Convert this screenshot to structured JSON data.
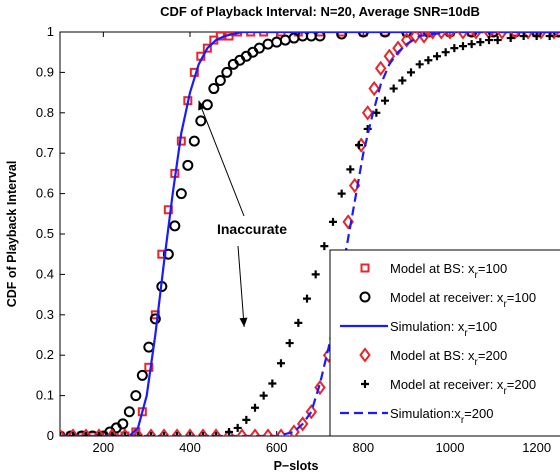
{
  "chart_data": {
    "type": "line",
    "title": "CDF of Playback Interval: N=20, Average SNR=10dB",
    "xlabel": "P−slots",
    "ylabel": "CDF of Playback Interval",
    "xlim": [
      100,
      1300
    ],
    "ylim": [
      0,
      1
    ],
    "xticks": [
      200,
      400,
      600,
      800,
      1000,
      1200
    ],
    "xtick_labels": [
      "200",
      "400",
      "600",
      "800",
      "1000",
      "1200"
    ],
    "yticks": [
      0,
      0.1,
      0.2,
      0.3,
      0.4,
      0.5,
      0.6,
      0.7,
      0.8,
      0.9,
      1
    ],
    "ytick_labels": [
      "0",
      "0.1",
      "0.2",
      "0.3",
      "0.4",
      "0.5",
      "0.6",
      "0.7",
      "0.8",
      "0.9",
      "1"
    ],
    "grid": false,
    "legend_position": "lower-right",
    "annotation": {
      "text": "Inaccurate",
      "arrow_targets": [
        {
          "x": 420,
          "y": 0.83
        },
        {
          "x": 525,
          "y": 0.27
        }
      ]
    },
    "series": [
      {
        "name": "Model at BS: x_r=100",
        "legend_main": "Model at BS: x",
        "legend_sub": "r",
        "legend_tail": "=100",
        "marker": "square",
        "color": "#e8262a",
        "line": "none",
        "x": [
          100,
          125,
          150,
          175,
          200,
          225,
          250,
          275,
          290,
          305,
          320,
          335,
          350,
          365,
          380,
          395,
          410,
          425,
          440,
          455,
          470,
          490,
          510,
          540,
          570,
          610,
          650,
          700,
          750,
          800,
          850,
          900,
          950,
          1000,
          1050,
          1100,
          1150,
          1200,
          1250,
          1300
        ],
        "y": [
          0,
          0,
          0,
          0,
          0,
          0,
          0,
          0.01,
          0.06,
          0.17,
          0.3,
          0.45,
          0.56,
          0.65,
          0.73,
          0.83,
          0.9,
          0.94,
          0.96,
          0.98,
          0.99,
          0.99,
          1,
          1,
          1,
          1,
          1,
          1,
          1,
          1,
          1,
          1,
          1,
          1,
          1,
          1,
          1,
          1,
          1,
          1
        ]
      },
      {
        "name": "Model at receiver: x_r=100",
        "legend_main": "Model at receiver: x",
        "legend_sub": "r",
        "legend_tail": "=100",
        "marker": "circle",
        "color": "#000000",
        "line": "none",
        "x": [
          100,
          125,
          150,
          175,
          200,
          215,
          230,
          245,
          260,
          275,
          290,
          305,
          320,
          335,
          350,
          365,
          380,
          395,
          410,
          425,
          440,
          455,
          470,
          485,
          500,
          515,
          530,
          545,
          560,
          580,
          600,
          620,
          640,
          660,
          680,
          700,
          750,
          800,
          850,
          900,
          950,
          1000,
          1050,
          1100,
          1150,
          1200,
          1250,
          1300
        ],
        "y": [
          0,
          0,
          0,
          0,
          0,
          0.01,
          0.02,
          0.03,
          0.06,
          0.1,
          0.15,
          0.22,
          0.29,
          0.37,
          0.45,
          0.52,
          0.6,
          0.67,
          0.73,
          0.78,
          0.82,
          0.86,
          0.88,
          0.9,
          0.92,
          0.93,
          0.94,
          0.95,
          0.96,
          0.97,
          0.975,
          0.98,
          0.985,
          0.99,
          0.99,
          0.99,
          0.995,
          1,
          1,
          1,
          1,
          1,
          1,
          1,
          1,
          1,
          1,
          1
        ]
      },
      {
        "name": "Simulation: x_r=100",
        "legend_main": "Simulation: x",
        "legend_sub": "r",
        "legend_tail": "=100",
        "marker": "none",
        "color": "#1a1aff",
        "line": "solid",
        "x": [
          100,
          200,
          260,
          280,
          300,
          320,
          340,
          360,
          380,
          400,
          420,
          440,
          460,
          480,
          500,
          520,
          550,
          600,
          700,
          800,
          1000,
          1300
        ],
        "y": [
          0,
          0,
          0,
          0.02,
          0.1,
          0.25,
          0.43,
          0.6,
          0.75,
          0.85,
          0.92,
          0.96,
          0.98,
          0.99,
          0.995,
          1,
          1,
          1,
          1,
          1,
          1,
          1
        ]
      },
      {
        "name": "Model at BS: x_r=200",
        "legend_main": "Model at BS: x",
        "legend_sub": "r",
        "legend_tail": "=200",
        "marker": "diamond",
        "color": "#e8262a",
        "line": "none",
        "x": [
          100,
          130,
          160,
          190,
          220,
          250,
          280,
          310,
          340,
          370,
          400,
          430,
          460,
          490,
          520,
          550,
          580,
          610,
          640,
          660,
          680,
          700,
          720,
          735,
          750,
          765,
          780,
          795,
          810,
          825,
          840,
          860,
          880,
          900,
          920,
          940,
          960,
          980,
          1000,
          1030,
          1060,
          1090,
          1120,
          1150,
          1180,
          1210,
          1240,
          1270,
          1300
        ],
        "y": [
          0,
          0,
          0,
          0,
          0,
          0,
          0,
          0,
          0,
          0,
          0,
          0,
          0,
          0,
          0,
          0,
          0,
          0,
          0.01,
          0.03,
          0.06,
          0.12,
          0.2,
          0.29,
          0.41,
          0.53,
          0.62,
          0.72,
          0.8,
          0.86,
          0.91,
          0.94,
          0.96,
          0.98,
          0.99,
          0.99,
          1,
          1,
          1,
          1,
          1,
          1,
          1,
          1,
          1,
          1,
          1,
          1,
          1
        ]
      },
      {
        "name": "Model at receiver: x_r=200",
        "legend_main": "Model at receiver: x",
        "legend_sub": "r",
        "legend_tail": "=200",
        "marker": "plus",
        "color": "#000000",
        "line": "none",
        "x": [
          100,
          130,
          160,
          190,
          220,
          250,
          280,
          310,
          340,
          370,
          400,
          430,
          460,
          490,
          510,
          530,
          550,
          570,
          590,
          610,
          630,
          650,
          670,
          690,
          710,
          730,
          750,
          770,
          790,
          810,
          830,
          850,
          870,
          890,
          910,
          930,
          950,
          970,
          990,
          1010,
          1030,
          1050,
          1070,
          1090,
          1110,
          1140,
          1170,
          1200,
          1230,
          1260,
          1290
        ],
        "y": [
          0,
          0,
          0,
          0,
          0,
          0,
          0,
          0,
          0,
          0,
          0,
          0,
          0,
          0.01,
          0.02,
          0.04,
          0.07,
          0.1,
          0.13,
          0.18,
          0.23,
          0.28,
          0.34,
          0.4,
          0.47,
          0.53,
          0.6,
          0.66,
          0.72,
          0.76,
          0.8,
          0.83,
          0.86,
          0.88,
          0.9,
          0.92,
          0.93,
          0.94,
          0.95,
          0.96,
          0.965,
          0.97,
          0.975,
          0.98,
          0.98,
          0.985,
          0.99,
          0.99,
          0.99,
          0.99,
          1
        ]
      },
      {
        "name": "Simulation:x_r=200",
        "legend_main": "Simulation:x",
        "legend_sub": "r",
        "legend_tail": "=200",
        "marker": "none",
        "color": "#1a1aff",
        "line": "dashed",
        "x": [
          100,
          600,
          640,
          660,
          680,
          700,
          720,
          740,
          760,
          780,
          800,
          820,
          840,
          860,
          880,
          900,
          930,
          960,
          1000,
          1300
        ],
        "y": [
          0,
          0,
          0.01,
          0.03,
          0.06,
          0.13,
          0.22,
          0.33,
          0.46,
          0.58,
          0.7,
          0.79,
          0.87,
          0.92,
          0.95,
          0.97,
          0.99,
          0.995,
          1,
          1
        ]
      }
    ]
  }
}
